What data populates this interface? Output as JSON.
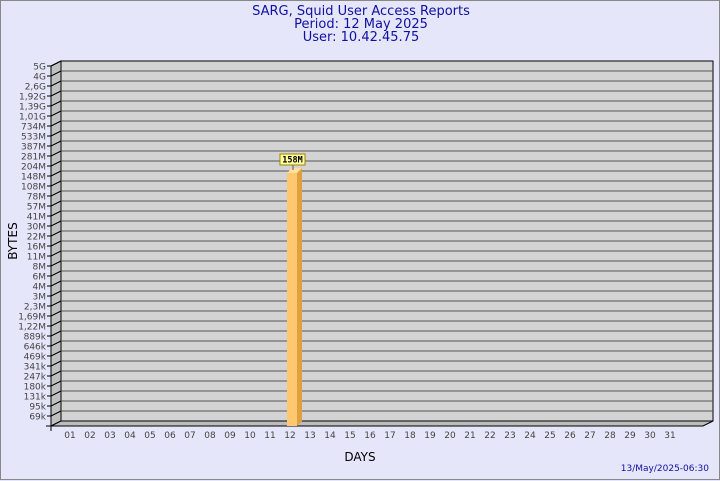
{
  "chart_data": {
    "type": "bar",
    "title": "SARG, Squid User Access Reports",
    "subtitle": [
      "Period: 12 May 2025",
      "User: 10.42.45.75"
    ],
    "xlabel": "DAYS",
    "ylabel": "BYTES",
    "y_scale": "log",
    "ytick_labels": [
      "5G",
      "4G",
      "2,6G",
      "1,92G",
      "1,39G",
      "1,01G",
      "734M",
      "533M",
      "387M",
      "281M",
      "204M",
      "148M",
      "108M",
      "78M",
      "57M",
      "41M",
      "30M",
      "22M",
      "16M",
      "11M",
      "8M",
      "6M",
      "4M",
      "3M",
      "2,3M",
      "1,69M",
      "1,22M",
      "889k",
      "646k",
      "469k",
      "341k",
      "247k",
      "180k",
      "131k",
      "95k",
      "69k"
    ],
    "categories": [
      "01",
      "02",
      "03",
      "04",
      "05",
      "06",
      "07",
      "08",
      "09",
      "10",
      "11",
      "12",
      "13",
      "14",
      "15",
      "16",
      "17",
      "18",
      "19",
      "20",
      "21",
      "22",
      "23",
      "24",
      "25",
      "26",
      "27",
      "28",
      "29",
      "30",
      "31"
    ],
    "values": [
      {
        "day": "12",
        "value_label": "158M"
      }
    ],
    "grid": true,
    "colors": {
      "background": "#e6e6fa",
      "plot": "#d3d3d3",
      "bar": "#ffc870",
      "bar_side": "#e0a040",
      "title": "#1010a0"
    }
  },
  "footer": {
    "timestamp": "13/May/2025-06:30"
  }
}
